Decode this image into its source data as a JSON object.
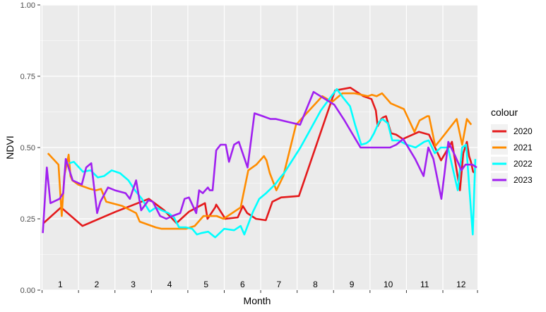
{
  "chart_data": {
    "type": "line",
    "xlabel": "Month",
    "ylabel": "NDVI",
    "ylim": [
      0,
      1
    ],
    "xlim": [
      0.5,
      12.4
    ],
    "y_ticks": [
      "0.00",
      "0.25",
      "0.50",
      "0.75",
      "1.00"
    ],
    "y_tick_values": [
      0,
      0.25,
      0.5,
      0.75,
      1.0
    ],
    "month_labels": [
      "1",
      "2",
      "3",
      "4",
      "5",
      "6",
      "7",
      "8",
      "9",
      "10",
      "11",
      "12"
    ],
    "grid": true,
    "legend_title": "colour",
    "legend_position": "right",
    "series": [
      {
        "name": "2020",
        "color": "#e41a1c",
        "x": [
          0.54,
          1.02,
          1.61,
          2.52,
          3.43,
          3.85,
          4.19,
          4.53,
          4.97,
          5.04,
          5.25,
          5.28,
          5.53,
          5.87,
          6.01,
          6.13,
          6.37,
          6.64,
          6.82,
          7.06,
          7.55,
          8.54,
          8.96,
          9.32,
          9.54,
          9.66,
          9.71,
          9.81,
          9.85,
          9.94,
          10.08,
          10.22,
          10.4,
          10.84,
          11.12,
          11.45,
          11.75,
          11.97,
          12.06,
          12.16,
          12.22,
          12.27,
          12.33,
          12.39
        ],
        "values": [
          0.235,
          0.29,
          0.225,
          0.275,
          0.32,
          0.28,
          0.235,
          0.275,
          0.305,
          0.25,
          0.29,
          0.3,
          0.25,
          0.255,
          0.295,
          0.27,
          0.25,
          0.245,
          0.31,
          0.325,
          0.33,
          0.7,
          0.71,
          0.68,
          0.67,
          0.63,
          0.575,
          0.6,
          0.605,
          0.61,
          0.55,
          0.545,
          0.53,
          0.555,
          0.545,
          0.455,
          0.52,
          0.35,
          0.48,
          0.52,
          0.47,
          0.45,
          0.415,
          0.41
        ]
      },
      {
        "name": "2021",
        "color": "#ff8c00",
        "x": [
          0.66,
          0.95,
          1.04,
          1.11,
          1.23,
          1.28,
          1.33,
          1.49,
          1.82,
          1.98,
          2.12,
          2.26,
          2.7,
          3.08,
          3.18,
          3.62,
          3.78,
          4.11,
          4.45,
          4.69,
          4.93,
          5.29,
          5.48,
          5.95,
          6.16,
          6.38,
          6.59,
          6.66,
          6.75,
          6.93,
          7.12,
          7.47,
          8.19,
          8.46,
          8.74,
          9.08,
          9.44,
          9.55,
          9.68,
          9.83,
          10.07,
          10.43,
          10.72,
          10.86,
          11.07,
          11.12,
          11.29,
          11.45,
          11.88,
          12.03,
          12.16,
          12.28
        ],
        "values": [
          0.48,
          0.44,
          0.26,
          0.4,
          0.475,
          0.4,
          0.385,
          0.37,
          0.355,
          0.35,
          0.355,
          0.31,
          0.295,
          0.27,
          0.24,
          0.22,
          0.215,
          0.215,
          0.215,
          0.225,
          0.26,
          0.26,
          0.25,
          0.29,
          0.42,
          0.44,
          0.47,
          0.455,
          0.41,
          0.35,
          0.4,
          0.58,
          0.68,
          0.66,
          0.69,
          0.69,
          0.68,
          0.685,
          0.68,
          0.69,
          0.655,
          0.635,
          0.555,
          0.595,
          0.61,
          0.61,
          0.505,
          0.53,
          0.6,
          0.51,
          0.6,
          0.58
        ]
      },
      {
        "name": "2022",
        "color": "#00ffff",
        "x": [
          1.25,
          1.37,
          1.62,
          1.83,
          2.03,
          2.2,
          2.41,
          2.64,
          2.87,
          3.05,
          3.24,
          3.45,
          3.63,
          3.78,
          3.97,
          4.12,
          4.26,
          4.45,
          4.62,
          4.75,
          4.87,
          5.06,
          5.25,
          5.5,
          5.77,
          5.95,
          6.05,
          6.29,
          6.46,
          6.65,
          6.89,
          7.04,
          7.14,
          7.59,
          7.85,
          8.15,
          8.38,
          8.59,
          8.76,
          8.95,
          9.09,
          9.26,
          9.4,
          9.5,
          9.61,
          9.75,
          9.84,
          9.99,
          10.11,
          10.28,
          10.51,
          10.75,
          10.99,
          11.11,
          11.28,
          11.44,
          11.64,
          11.91,
          12.03,
          12.14,
          12.23,
          12.32,
          12.39
        ],
        "values": [
          0.445,
          0.45,
          0.415,
          0.42,
          0.395,
          0.4,
          0.42,
          0.41,
          0.385,
          0.35,
          0.32,
          0.275,
          0.29,
          0.28,
          0.27,
          0.255,
          0.22,
          0.22,
          0.215,
          0.195,
          0.2,
          0.205,
          0.185,
          0.215,
          0.21,
          0.225,
          0.195,
          0.275,
          0.32,
          0.34,
          0.37,
          0.395,
          0.41,
          0.5,
          0.56,
          0.63,
          0.67,
          0.705,
          0.675,
          0.645,
          0.58,
          0.51,
          0.515,
          0.525,
          0.55,
          0.59,
          0.6,
          0.585,
          0.525,
          0.525,
          0.51,
          0.5,
          0.52,
          0.525,
          0.48,
          0.5,
          0.5,
          0.35,
          0.5,
          0.51,
          0.35,
          0.195,
          0.46
        ]
      },
      {
        "name": "2023",
        "color": "#a020f0",
        "x": [
          0.52,
          0.63,
          0.73,
          0.81,
          0.98,
          1.08,
          1.15,
          1.34,
          1.59,
          1.71,
          1.85,
          2.01,
          2.1,
          2.31,
          2.5,
          2.79,
          2.91,
          3.08,
          3.22,
          3.42,
          3.54,
          3.74,
          3.91,
          4.08,
          4.29,
          4.41,
          4.53,
          4.73,
          4.81,
          4.91,
          5.05,
          5.1,
          5.18,
          5.28,
          5.4,
          5.54,
          5.63,
          5.77,
          5.9,
          6.14,
          6.33,
          6.56,
          6.77,
          6.92,
          7.24,
          7.58,
          7.95,
          8.52,
          8.8,
          9.24,
          9.56,
          9.71,
          9.84,
          10.05,
          10.22,
          10.41,
          10.74,
          10.97,
          11.1,
          11.24,
          11.46,
          11.65,
          11.84,
          12.01,
          12.12,
          12.31,
          12.43
        ],
        "values": [
          0.2,
          0.43,
          0.305,
          0.31,
          0.32,
          0.34,
          0.46,
          0.385,
          0.37,
          0.43,
          0.445,
          0.27,
          0.31,
          0.36,
          0.35,
          0.34,
          0.32,
          0.385,
          0.28,
          0.315,
          0.31,
          0.26,
          0.25,
          0.26,
          0.27,
          0.32,
          0.325,
          0.27,
          0.35,
          0.34,
          0.36,
          0.35,
          0.35,
          0.49,
          0.51,
          0.51,
          0.45,
          0.51,
          0.52,
          0.43,
          0.62,
          0.61,
          0.6,
          0.6,
          0.59,
          0.58,
          0.695,
          0.65,
          0.595,
          0.5,
          0.5,
          0.5,
          0.5,
          0.5,
          0.51,
          0.53,
          0.46,
          0.4,
          0.5,
          0.46,
          0.32,
          0.52,
          0.47,
          0.42,
          0.44,
          0.44,
          0.43
        ]
      }
    ]
  }
}
